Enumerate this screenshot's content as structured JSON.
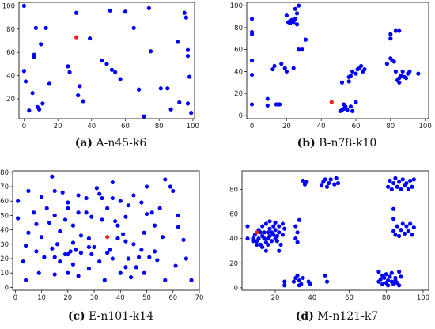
{
  "chart_data": [
    {
      "type": "scatter",
      "caption_id": "(a)",
      "caption_text": " A-n45-k6",
      "xlim": [
        -3,
        101
      ],
      "ylim": [
        3,
        103
      ],
      "xticks": [
        0,
        20,
        40,
        60,
        80,
        100
      ],
      "yticks": [
        20,
        40,
        60,
        80,
        100
      ],
      "depot": {
        "x": 31,
        "y": 73
      },
      "customers": [
        [
          0,
          100
        ],
        [
          0,
          44
        ],
        [
          1,
          35
        ],
        [
          3,
          10
        ],
        [
          5,
          25
        ],
        [
          6,
          58
        ],
        [
          6,
          56
        ],
        [
          7,
          81
        ],
        [
          8,
          13
        ],
        [
          9,
          11
        ],
        [
          10,
          67
        ],
        [
          11,
          16
        ],
        [
          13,
          81
        ],
        [
          15,
          33
        ],
        [
          26,
          48
        ],
        [
          27,
          43
        ],
        [
          31,
          94
        ],
        [
          32,
          23
        ],
        [
          33,
          31
        ],
        [
          35,
          18
        ],
        [
          39,
          72
        ],
        [
          46,
          53
        ],
        [
          49,
          50
        ],
        [
          51,
          96
        ],
        [
          52,
          45
        ],
        [
          54,
          43
        ],
        [
          57,
          37
        ],
        [
          60,
          95
        ],
        [
          65,
          81
        ],
        [
          68,
          28
        ],
        [
          71,
          5
        ],
        [
          74,
          98
        ],
        [
          75,
          61
        ],
        [
          81,
          29
        ],
        [
          85,
          29
        ],
        [
          87,
          11
        ],
        [
          91,
          69
        ],
        [
          92,
          17
        ],
        [
          95,
          94
        ],
        [
          96,
          90
        ],
        [
          97,
          62
        ],
        [
          97,
          57
        ],
        [
          98,
          39
        ],
        [
          97,
          16
        ],
        [
          99,
          8
        ]
      ],
      "dot_color": "#0000ff",
      "depot_color": "#e8221a"
    },
    {
      "type": "scatter",
      "caption_id": "(b)",
      "caption_text": " B-n78-k10",
      "xlim": [
        -3,
        102
      ],
      "ylim": [
        -3,
        103
      ],
      "xticks": [
        0,
        20,
        40,
        60,
        80,
        100
      ],
      "yticks": [
        0,
        20,
        40,
        60,
        80,
        100
      ],
      "depot": {
        "x": 46,
        "y": 12
      },
      "customers": [
        [
          0,
          88
        ],
        [
          0,
          76
        ],
        [
          0,
          74
        ],
        [
          0,
          50
        ],
        [
          0,
          37
        ],
        [
          0,
          10
        ],
        [
          9,
          15
        ],
        [
          9,
          9
        ],
        [
          12,
          42
        ],
        [
          13,
          45
        ],
        [
          14,
          10
        ],
        [
          15,
          10
        ],
        [
          16,
          10
        ],
        [
          17,
          47
        ],
        [
          19,
          43
        ],
        [
          20,
          91
        ],
        [
          21,
          85
        ],
        [
          22,
          84
        ],
        [
          23,
          87
        ],
        [
          24,
          85
        ],
        [
          25,
          88
        ],
        [
          26,
          93
        ],
        [
          25,
          97
        ],
        [
          26,
          83
        ],
        [
          27,
          100
        ],
        [
          29,
          60
        ],
        [
          24,
          43
        ],
        [
          20,
          40
        ],
        [
          27,
          60
        ],
        [
          22,
          86
        ],
        [
          31,
          69
        ],
        [
          51,
          4
        ],
        [
          52,
          5
        ],
        [
          53,
          6
        ],
        [
          54,
          8
        ],
        [
          55,
          5
        ],
        [
          53,
          10
        ],
        [
          57,
          8
        ],
        [
          58,
          4
        ],
        [
          52,
          30
        ],
        [
          56,
          31
        ],
        [
          57,
          36
        ],
        [
          58,
          40
        ],
        [
          60,
          38
        ],
        [
          60,
          12
        ],
        [
          61,
          42
        ],
        [
          63,
          45
        ],
        [
          64,
          40
        ],
        [
          62,
          43
        ],
        [
          65,
          42
        ],
        [
          56,
          35
        ],
        [
          78,
          47
        ],
        [
          80,
          70
        ],
        [
          81,
          50
        ],
        [
          80,
          52
        ],
        [
          82,
          49
        ],
        [
          83,
          77
        ],
        [
          85,
          77
        ],
        [
          83,
          40
        ],
        [
          84,
          32
        ],
        [
          85,
          34
        ],
        [
          86,
          36
        ],
        [
          87,
          40
        ],
        [
          88,
          35
        ],
        [
          89,
          34
        ],
        [
          90,
          38
        ],
        [
          91,
          40
        ],
        [
          85,
          30
        ],
        [
          96,
          38
        ],
        [
          80,
          74
        ]
      ],
      "dot_color": "#0000ff",
      "depot_color": "#e8221a"
    },
    {
      "type": "scatter",
      "caption_id": "(c)",
      "caption_text": " E-n101-k14",
      "xlim": [
        -1,
        70
      ],
      "ylim": [
        -2,
        81
      ],
      "xticks": [
        0,
        10,
        20,
        30,
        40,
        50,
        60,
        70
      ],
      "yticks": [
        0,
        10,
        20,
        30,
        40,
        50,
        60,
        70,
        80
      ],
      "depot": {
        "x": 35,
        "y": 35
      },
      "customers": [
        [
          1,
          60
        ],
        [
          1,
          48
        ],
        [
          3,
          18
        ],
        [
          4,
          29
        ],
        [
          4,
          5
        ],
        [
          5,
          67
        ],
        [
          5,
          38
        ],
        [
          7,
          52
        ],
        [
          8,
          44
        ],
        [
          8,
          25
        ],
        [
          9,
          10
        ],
        [
          10,
          63
        ],
        [
          10,
          35
        ],
        [
          11,
          21
        ],
        [
          12,
          55
        ],
        [
          13,
          45
        ],
        [
          14,
          27
        ],
        [
          14,
          77
        ],
        [
          15,
          21
        ],
        [
          15,
          67
        ],
        [
          15,
          50
        ],
        [
          15,
          9
        ],
        [
          16,
          30
        ],
        [
          17,
          39
        ],
        [
          17,
          18
        ],
        [
          18,
          66
        ],
        [
          19,
          23
        ],
        [
          19,
          47
        ],
        [
          20,
          10
        ],
        [
          20,
          23
        ],
        [
          20,
          55
        ],
        [
          20,
          59
        ],
        [
          21,
          25
        ],
        [
          22,
          16
        ],
        [
          22,
          43
        ],
        [
          22,
          31
        ],
        [
          23,
          26
        ],
        [
          24,
          8
        ],
        [
          24,
          64
        ],
        [
          24,
          52
        ],
        [
          25,
          24
        ],
        [
          25,
          36
        ],
        [
          27,
          52
        ],
        [
          27,
          62
        ],
        [
          28,
          13
        ],
        [
          28,
          28
        ],
        [
          28,
          34
        ],
        [
          29,
          49
        ],
        [
          29,
          23
        ],
        [
          30,
          28
        ],
        [
          31,
          69
        ],
        [
          32,
          65
        ],
        [
          32,
          18
        ],
        [
          33,
          62
        ],
        [
          33,
          47
        ],
        [
          34,
          5
        ],
        [
          35,
          24
        ],
        [
          35,
          55
        ],
        [
          36,
          26
        ],
        [
          37,
          62
        ],
        [
          37,
          73
        ],
        [
          37,
          20
        ],
        [
          38,
          46
        ],
        [
          39,
          43
        ],
        [
          39,
          34
        ],
        [
          40,
          60
        ],
        [
          40,
          10
        ],
        [
          41,
          37
        ],
        [
          42,
          32
        ],
        [
          42,
          49
        ],
        [
          42,
          14
        ],
        [
          43,
          20
        ],
        [
          43,
          57
        ],
        [
          44,
          7
        ],
        [
          45,
          30
        ],
        [
          45,
          64
        ],
        [
          46,
          14
        ],
        [
          47,
          21
        ],
        [
          48,
          26
        ],
        [
          48,
          59
        ],
        [
          49,
          38
        ],
        [
          49,
          10
        ],
        [
          50,
          70
        ],
        [
          50,
          51
        ],
        [
          51,
          21
        ],
        [
          52,
          52
        ],
        [
          53,
          43
        ],
        [
          53,
          25
        ],
        [
          54,
          19
        ],
        [
          55,
          55
        ],
        [
          56,
          35
        ],
        [
          57,
          5
        ],
        [
          57,
          75
        ],
        [
          59,
          70
        ],
        [
          60,
          67
        ],
        [
          61,
          15
        ],
        [
          62,
          50
        ],
        [
          62,
          42
        ],
        [
          64,
          33
        ],
        [
          65,
          20
        ],
        [
          67,
          5
        ]
      ],
      "dot_color": "#0000ff",
      "depot_color": "#e8221a"
    },
    {
      "type": "scatter",
      "caption_id": "(d)",
      "caption_text": " M-n121-k7",
      "xlim": [
        2,
        103
      ],
      "ylim": [
        -2,
        95
      ],
      "xticks": [
        20,
        40,
        60,
        80,
        100
      ],
      "yticks": [
        0,
        20,
        40,
        60,
        80
      ],
      "depot": {
        "x": 10,
        "y": 45
      },
      "customers": [
        [
          5,
          50
        ],
        [
          5,
          40
        ],
        [
          8,
          40
        ],
        [
          8,
          38
        ],
        [
          9,
          43
        ],
        [
          10,
          38
        ],
        [
          11,
          40
        ],
        [
          12,
          35
        ],
        [
          12,
          45
        ],
        [
          13,
          33
        ],
        [
          13,
          50
        ],
        [
          14,
          45
        ],
        [
          14,
          40
        ],
        [
          15,
          37
        ],
        [
          15,
          30
        ],
        [
          15,
          52
        ],
        [
          16,
          45
        ],
        [
          16,
          40
        ],
        [
          16,
          35
        ],
        [
          17,
          48
        ],
        [
          17,
          54
        ],
        [
          17,
          42
        ],
        [
          18,
          38
        ],
        [
          18,
          45
        ],
        [
          19,
          50
        ],
        [
          19,
          43
        ],
        [
          20,
          47
        ],
        [
          20,
          53
        ],
        [
          20,
          40
        ],
        [
          21,
          42
        ],
        [
          21,
          38
        ],
        [
          22,
          45
        ],
        [
          22,
          50
        ],
        [
          23,
          35
        ],
        [
          24,
          43
        ],
        [
          24,
          52
        ],
        [
          25,
          48
        ],
        [
          13,
          42
        ],
        [
          10,
          35
        ],
        [
          11,
          47
        ],
        [
          22,
          30
        ],
        [
          25,
          2
        ],
        [
          25,
          5
        ],
        [
          32,
          45
        ],
        [
          31,
          40
        ],
        [
          31,
          50
        ],
        [
          33,
          55
        ],
        [
          32,
          37
        ],
        [
          30,
          5
        ],
        [
          31,
          8
        ],
        [
          32,
          10
        ],
        [
          33,
          6
        ],
        [
          34,
          3
        ],
        [
          35,
          8
        ],
        [
          33,
          2
        ],
        [
          35,
          87
        ],
        [
          36,
          84
        ],
        [
          37,
          86
        ],
        [
          38,
          5
        ],
        [
          39,
          3
        ],
        [
          45,
          83
        ],
        [
          46,
          86
        ],
        [
          47,
          88
        ],
        [
          48,
          82
        ],
        [
          49,
          85
        ],
        [
          50,
          88
        ],
        [
          52,
          84
        ],
        [
          53,
          89
        ],
        [
          47,
          10
        ],
        [
          48,
          5
        ],
        [
          54,
          85
        ],
        [
          76,
          13
        ],
        [
          76,
          5
        ],
        [
          77,
          7
        ],
        [
          78,
          10
        ],
        [
          78,
          3
        ],
        [
          79,
          8
        ],
        [
          80,
          4
        ],
        [
          80,
          11
        ],
        [
          81,
          6
        ],
        [
          81,
          2
        ],
        [
          82,
          9
        ],
        [
          83,
          5
        ],
        [
          83,
          12
        ],
        [
          84,
          3
        ],
        [
          85,
          8
        ],
        [
          85,
          6
        ],
        [
          86,
          4
        ],
        [
          87,
          2
        ],
        [
          88,
          9
        ],
        [
          87,
          13
        ],
        [
          81,
          82
        ],
        [
          82,
          87
        ],
        [
          83,
          80
        ],
        [
          84,
          85
        ],
        [
          85,
          89
        ],
        [
          86,
          82
        ],
        [
          87,
          86
        ],
        [
          88,
          80
        ],
        [
          89,
          88
        ],
        [
          90,
          83
        ],
        [
          91,
          85
        ],
        [
          92,
          80
        ],
        [
          93,
          87
        ],
        [
          94,
          82
        ],
        [
          95,
          88
        ],
        [
          84,
          64
        ],
        [
          84,
          56
        ],
        [
          84,
          46
        ],
        [
          85,
          43
        ],
        [
          86,
          50
        ],
        [
          87,
          42
        ],
        [
          88,
          47
        ],
        [
          89,
          52
        ],
        [
          90,
          44
        ],
        [
          91,
          50
        ],
        [
          92,
          46
        ],
        [
          93,
          52
        ],
        [
          94,
          43
        ],
        [
          95,
          49
        ]
      ],
      "dot_color": "#0000ff",
      "depot_color": "#e8221a"
    }
  ]
}
